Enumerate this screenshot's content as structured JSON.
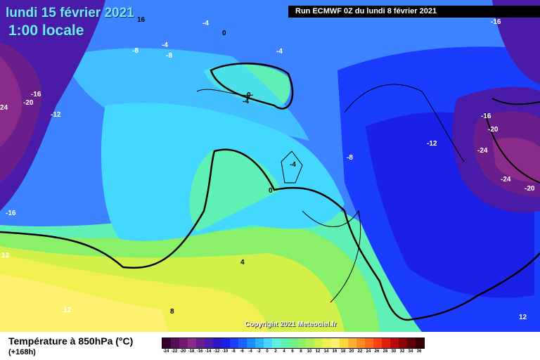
{
  "header": {
    "date": "lundi 15 février 2021",
    "time": "1:00 locale",
    "run": "Run ECMWF 0Z du lundi 8 février 2021"
  },
  "copyright": "Copyright 2021 Meteociel.fr",
  "footer": {
    "field": "Température à 850hPa (°C)",
    "lead": "(+168h)"
  },
  "legend": {
    "values": [
      "-24",
      "-22",
      "-20",
      "-18",
      "-16",
      "-14",
      "-12",
      "-10",
      "-8",
      "-6",
      "-4",
      "-2",
      "0",
      "2",
      "4",
      "6",
      "8",
      "10",
      "12",
      "14",
      "16",
      "18",
      "20",
      "22",
      "24",
      "26",
      "28",
      "30",
      "32",
      "34",
      "36"
    ],
    "colors": [
      "#3a0033",
      "#570c57",
      "#741874",
      "#8a2a8a",
      "#6a1e8c",
      "#4a1aa8",
      "#2a18c8",
      "#1a20e8",
      "#1a3cff",
      "#1a62ff",
      "#1a8cff",
      "#2ab4ff",
      "#44d8ff",
      "#5ef0e4",
      "#5ef0b4",
      "#6ef08a",
      "#8af06a",
      "#aef05a",
      "#d2f04a",
      "#f0f050",
      "#fff070",
      "#ffd840",
      "#ffb030",
      "#ff8c20",
      "#ff6818",
      "#ff4010",
      "#e02008",
      "#b80808",
      "#8c0008",
      "#600008",
      "#3a0000"
    ]
  },
  "map_labels": [
    {
      "text": "16"
    },
    {
      "text": "-4"
    },
    {
      "text": "0"
    },
    {
      "text": "-8"
    },
    {
      "text": "-4"
    },
    {
      "text": "-8"
    },
    {
      "text": "-4"
    },
    {
      "text": "0"
    },
    {
      "text": "-4"
    },
    {
      "text": "-16"
    },
    {
      "text": "-20"
    },
    {
      "text": "24"
    },
    {
      "text": "-12"
    },
    {
      "text": "-8"
    },
    {
      "text": "-4"
    },
    {
      "text": "0"
    },
    {
      "text": "-16"
    },
    {
      "text": "12"
    },
    {
      "text": "4"
    },
    {
      "text": "8"
    },
    {
      "text": "12"
    },
    {
      "text": "-16"
    },
    {
      "text": "-16"
    },
    {
      "text": "-20"
    },
    {
      "text": "-12"
    },
    {
      "text": "-24"
    },
    {
      "text": "-24"
    },
    {
      "text": "-20"
    },
    {
      "text": "12"
    }
  ]
}
